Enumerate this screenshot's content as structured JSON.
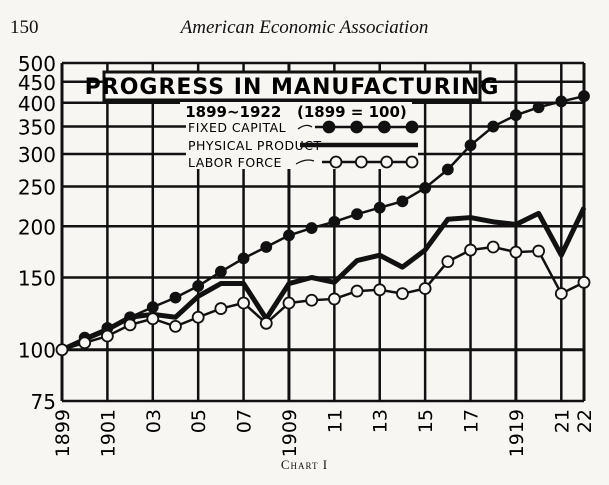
{
  "page": {
    "number": "150",
    "running_head": "American Economic Association",
    "caption": "Chart I"
  },
  "chart_data": {
    "type": "line",
    "title": "PROGRESS IN MANUFACTURING",
    "subtitle": "1899~1922   (1899 = 100)",
    "yscale": "log",
    "ylim": [
      75,
      500
    ],
    "xlim": [
      1899,
      1922
    ],
    "grid": true,
    "legend_placement": "top-left",
    "y_ticks": [
      {
        "value": 75,
        "label": "75"
      },
      {
        "value": 100,
        "label": "100"
      },
      {
        "value": 150,
        "label": "150"
      },
      {
        "value": 200,
        "label": "200"
      },
      {
        "value": 250,
        "label": "250"
      },
      {
        "value": 300,
        "label": "300"
      },
      {
        "value": 350,
        "label": "350"
      },
      {
        "value": 400,
        "label": "400"
      },
      {
        "value": 450,
        "label": "450"
      },
      {
        "value": 500,
        "label": "500"
      }
    ],
    "x_ticks": [
      {
        "value": 1899,
        "label": "1899"
      },
      {
        "value": 1901,
        "label": "1901"
      },
      {
        "value": 1903,
        "label": "03"
      },
      {
        "value": 1905,
        "label": "05"
      },
      {
        "value": 1907,
        "label": "07"
      },
      {
        "value": 1909,
        "label": "1909"
      },
      {
        "value": 1911,
        "label": "11"
      },
      {
        "value": 1913,
        "label": "13"
      },
      {
        "value": 1915,
        "label": "15"
      },
      {
        "value": 1917,
        "label": "17"
      },
      {
        "value": 1919,
        "label": "1919"
      },
      {
        "value": 1921,
        "label": "21"
      },
      {
        "value": 1922,
        "label": "22"
      }
    ],
    "x": [
      1899,
      1900,
      1901,
      1902,
      1903,
      1904,
      1905,
      1906,
      1907,
      1908,
      1909,
      1910,
      1911,
      1912,
      1913,
      1914,
      1915,
      1916,
      1917,
      1918,
      1919,
      1920,
      1921,
      1922
    ],
    "series": [
      {
        "name": "FIXED CAPITAL",
        "style": "line-filled-dots",
        "values": [
          100,
          107,
          113,
          120,
          127,
          134,
          143,
          155,
          167,
          178,
          190,
          198,
          205,
          214,
          222,
          230,
          248,
          275,
          315,
          350,
          373,
          390,
          403,
          415
        ]
      },
      {
        "name": "PHYSICAL PRODUCT",
        "style": "heavy-line",
        "values": [
          100,
          106,
          112,
          120,
          122,
          120,
          135,
          145,
          145,
          119,
          145,
          150,
          146,
          165,
          170,
          159,
          175,
          208,
          210,
          205,
          202,
          215,
          170,
          222
        ]
      },
      {
        "name": "LABOR FORCE",
        "style": "line-open-dots",
        "values": [
          100,
          104,
          108,
          115,
          119,
          114,
          120,
          126,
          130,
          116,
          130,
          132,
          133,
          139,
          140,
          137,
          141,
          164,
          175,
          178,
          173,
          174,
          137,
          146
        ]
      }
    ]
  },
  "colors": {
    "ink": "#111111",
    "paper": "#f7f6f2"
  }
}
